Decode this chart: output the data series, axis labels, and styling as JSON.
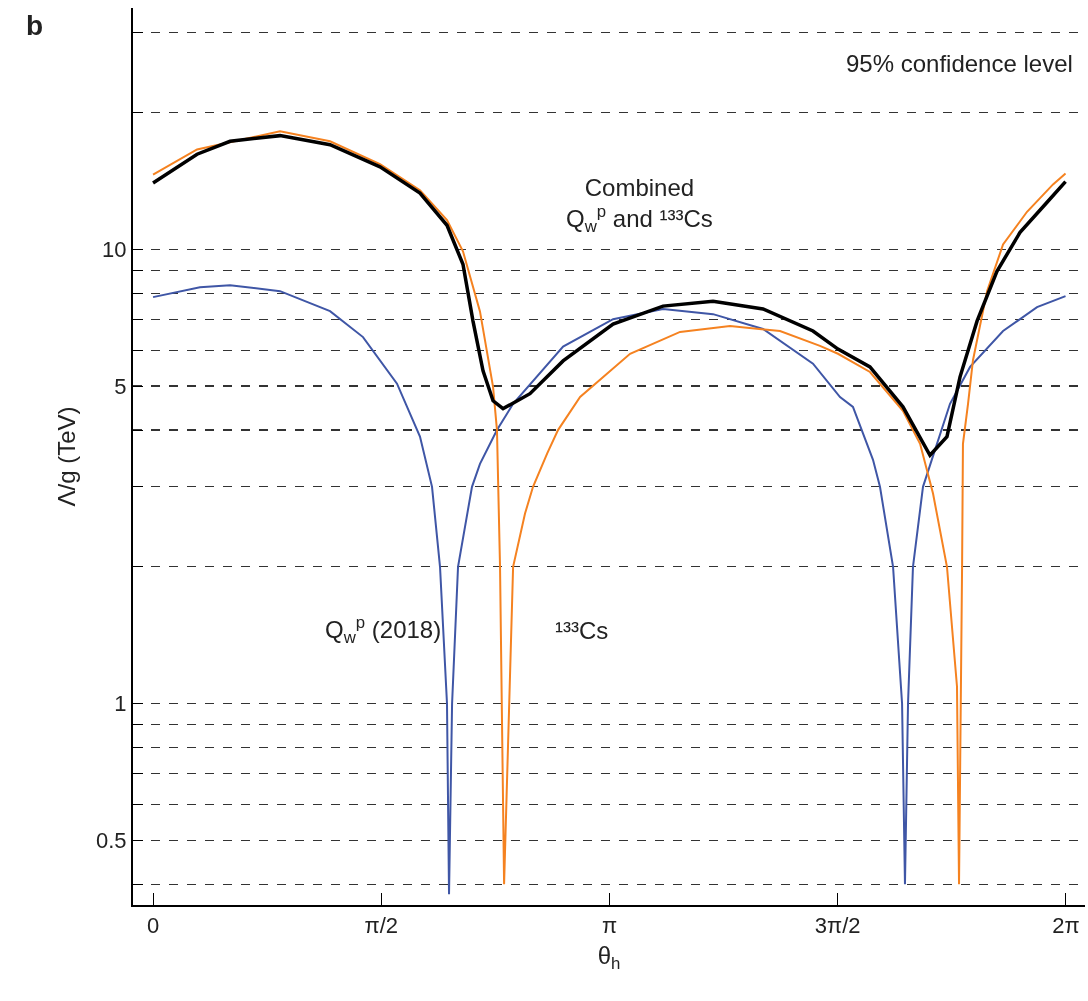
{
  "chart_data": {
    "type": "line",
    "xlabel": "θ$_{h}$",
    "ylabel": "Λ/g (TeV)",
    "annotations": [
      "b",
      "95% confidence level"
    ],
    "log": "y",
    "grid": "y",
    "legend": false,
    "line_style": "solid",
    "xlim": [
      -0.138,
      6.414
    ],
    "xticks": [
      {
        "value": 0,
        "label": "0"
      },
      {
        "value": 1.571,
        "label": "π/2"
      },
      {
        "value": 3.142,
        "label": "π"
      },
      {
        "value": 4.712,
        "label": "3π/2"
      },
      {
        "value": 6.283,
        "label": "2π"
      }
    ],
    "ylim": [
      0.36,
      34
    ],
    "yticks": [
      {
        "value": 0.4,
        "label": null
      },
      0.5,
      {
        "value": 0.6,
        "label": null
      },
      {
        "value": 0.7,
        "label": null
      },
      {
        "value": 0.8,
        "label": null
      },
      {
        "value": 0.9,
        "label": null
      },
      1,
      {
        "value": 2,
        "label": null
      },
      {
        "value": 3,
        "label": null
      },
      {
        "value": 4,
        "label": null
      },
      5,
      {
        "value": 6,
        "label": null
      },
      {
        "value": 7,
        "label": null
      },
      {
        "value": 8,
        "label": null
      },
      {
        "value": 9,
        "label": null
      },
      10,
      {
        "value": 20,
        "label": null
      },
      {
        "value": 30,
        "label": null
      }
    ],
    "series": [
      {
        "name": "Q$_{w}$$^{p}$ (2018)",
        "color": "#3f56a6",
        "x": [
          0,
          0.323,
          0.53,
          0.874,
          1.218,
          1.445,
          1.679,
          1.837,
          1.92,
          1.975,
          2.023,
          2.037,
          2.058,
          2.099,
          2.195,
          2.25,
          2.367,
          2.478,
          2.822,
          3.166,
          3.51,
          3.854,
          4.198,
          4.542,
          4.728,
          4.817,
          4.955,
          5.003,
          5.093,
          5.155,
          5.175,
          5.196,
          5.23,
          5.299,
          5.485,
          5.623,
          5.85,
          6.084,
          6.28
        ],
        "values": [
          7.85,
          8.25,
          8.34,
          8.09,
          7.31,
          6.41,
          5.06,
          3.87,
          3.0,
          2.0,
          1.0,
          0.38,
          1.0,
          2.0,
          3.0,
          3.37,
          4.0,
          4.57,
          6.11,
          7.02,
          7.39,
          7.2,
          6.68,
          5.6,
          4.73,
          4.5,
          3.44,
          3.0,
          2.0,
          1.0,
          0.4,
          1.0,
          2.0,
          3.0,
          4.57,
          5.51,
          6.61,
          7.46,
          7.89
        ]
      },
      {
        "name": "¹³³Cs",
        "color": "#f58220",
        "x": [
          0,
          0.303,
          0.874,
          1.218,
          1.562,
          1.837,
          2.023,
          2.133,
          2.25,
          2.34,
          2.367,
          2.388,
          2.416,
          2.478,
          2.56,
          2.615,
          2.712,
          2.787,
          2.939,
          3.283,
          3.627,
          3.971,
          4.315,
          4.59,
          4.714,
          4.934,
          5.161,
          5.279,
          5.368,
          5.464,
          5.533,
          5.547,
          5.568,
          5.574,
          5.609,
          5.643,
          5.74,
          5.85,
          6.015,
          6.194,
          6.28
        ],
        "values": [
          14.6,
          16.6,
          18.2,
          17.3,
          15.4,
          13.5,
          11.6,
          9.9,
          7.3,
          4.98,
          4.0,
          2.0,
          0.4,
          2.0,
          2.62,
          3.0,
          3.55,
          4.0,
          4.73,
          5.89,
          6.58,
          6.78,
          6.61,
          6.13,
          5.89,
          5.37,
          4.41,
          3.73,
          2.9,
          2.0,
          1.09,
          0.4,
          2.0,
          3.73,
          4.57,
          5.7,
          8.09,
          10.25,
          12.1,
          13.9,
          14.7
        ]
      },
      {
        "name": "Combined\nQ$_{w}$$^{p}$ and ¹³³Cs",
        "color": "#000000",
        "x": [
          0,
          0.303,
          0.53,
          0.874,
          1.218,
          1.562,
          1.837,
          2.023,
          2.133,
          2.202,
          2.271,
          2.34,
          2.409,
          2.594,
          2.822,
          3.166,
          3.51,
          3.854,
          4.198,
          4.542,
          4.714,
          4.934,
          5.161,
          5.347,
          5.464,
          5.554,
          5.671,
          5.808,
          5.967,
          6.153,
          6.28
        ],
        "values": [
          14.0,
          16.2,
          17.3,
          17.8,
          17.0,
          15.2,
          13.3,
          11.3,
          9.27,
          6.95,
          5.4,
          4.64,
          4.46,
          4.81,
          5.68,
          6.85,
          7.5,
          7.69,
          7.39,
          6.61,
          6.03,
          5.51,
          4.5,
          3.52,
          3.87,
          5.24,
          6.95,
          8.95,
          10.9,
          12.7,
          14.1
        ]
      }
    ]
  }
}
